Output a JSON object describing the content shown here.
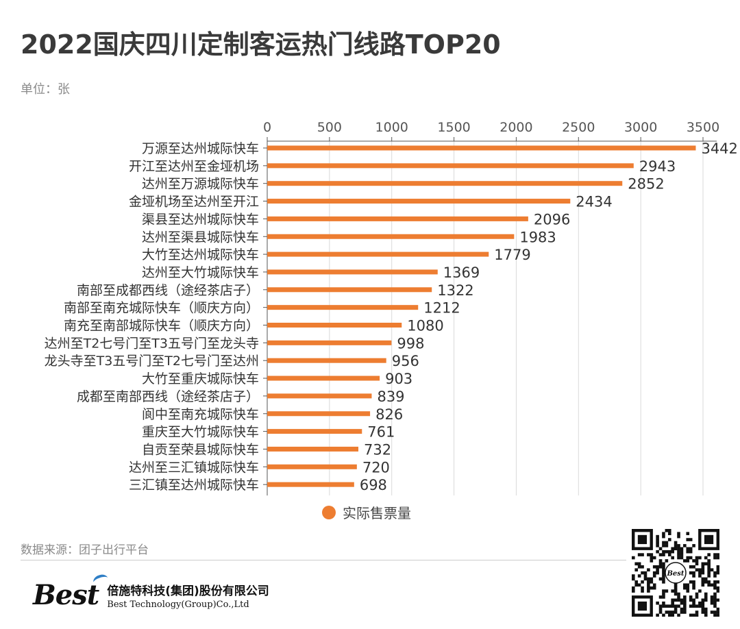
{
  "header": {
    "title": "2022国庆四川定制客运热门线路TOP20",
    "unit": "单位：张"
  },
  "chart_data": {
    "type": "bar",
    "orientation": "horizontal",
    "title": "2022国庆四川定制客运热门线路TOP20",
    "xlabel": "",
    "ylabel": "",
    "xlim": [
      0,
      3500
    ],
    "x_ticks": [
      0,
      500,
      1000,
      1500,
      2000,
      2500,
      3000,
      3500
    ],
    "x_axis_position": "top",
    "grid": true,
    "legend_position": "bottom",
    "bar_color": "#ED7D31",
    "categories": [
      "万源至达州城际快车",
      "开江至达州至金垭机场",
      "达州至万源城际快车",
      "金垭机场至达州至开江",
      "渠县至达州城际快车",
      "达州至渠县城际快车",
      "大竹至达州城际快车",
      "达州至大竹城际快车",
      "南部至成都西线（途经茶店子）",
      "南部至南充城际快车（顺庆方向）",
      "南充至南部城际快车（顺庆方向）",
      "达州至T2七号门至T3五号门至龙头寺",
      "龙头寺至T3五号门至T2七号门至达州",
      "大竹至重庆城际快车",
      "成都至南部西线（途经茶店子）",
      "阆中至南充城际快车",
      "重庆至大竹城际快车",
      "自贡至荣县城际快车",
      "达州至三汇镇城际快车",
      "三汇镇至达州城际快车"
    ],
    "series": [
      {
        "name": "实际售票量",
        "values": [
          3442,
          2943,
          2852,
          2434,
          2096,
          1983,
          1779,
          1369,
          1322,
          1212,
          1080,
          998,
          956,
          903,
          839,
          826,
          761,
          732,
          720,
          698
        ]
      }
    ]
  },
  "legend": {
    "label": "实际售票量"
  },
  "footer": {
    "source": "数据来源：团子出行平台",
    "logo_mark": "Best",
    "company_cn": "倍施特科技(集团)股份有限公司",
    "company_en": "Best Technology(Group)Co.,Ltd",
    "qr_center_label": "Best"
  }
}
